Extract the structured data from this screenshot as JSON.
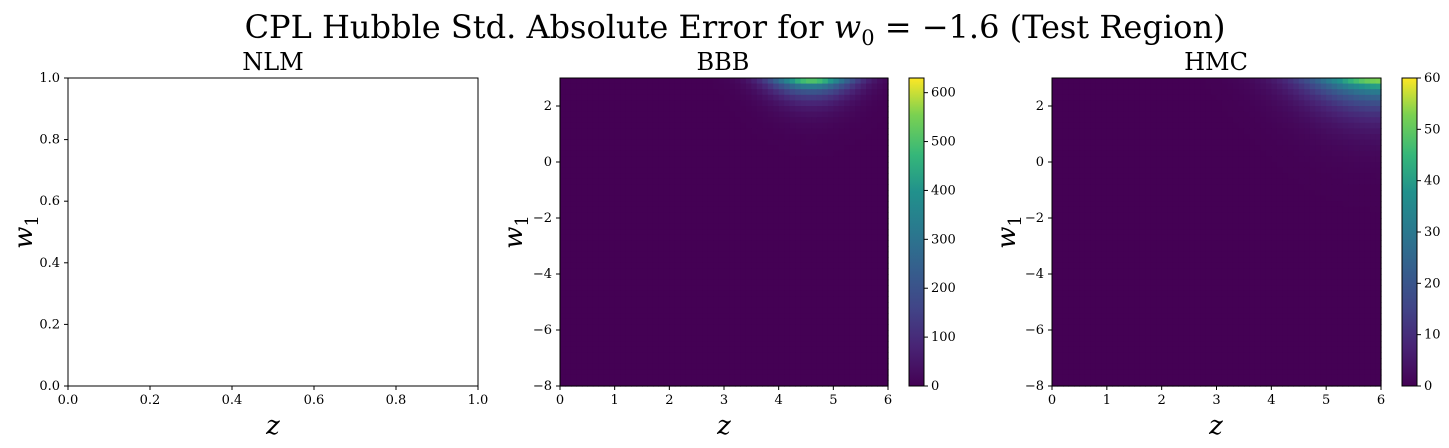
{
  "figure": {
    "title_prefix": "CPL Hubble Std. Absolute Error for ",
    "title_var": "w",
    "title_sub": "0",
    "title_suffix": " = −1.6 (Test Region)"
  },
  "chart_data": [
    {
      "type": "heatmap",
      "title": "NLM",
      "xlabel": "z",
      "ylabel_var": "w",
      "ylabel_sub": "1",
      "xlim": [
        0,
        1
      ],
      "ylim": [
        0,
        1
      ],
      "x_ticks": [
        "0.0",
        "0.2",
        "0.4",
        "0.6",
        "0.8",
        "1.0"
      ],
      "y_ticks": [
        "0.0",
        "0.2",
        "0.4",
        "0.6",
        "0.8",
        "1.0"
      ],
      "empty": true,
      "colorbar": null
    },
    {
      "type": "heatmap",
      "title": "BBB",
      "xlabel": "z",
      "ylabel_var": "w",
      "ylabel_sub": "1",
      "xlim": [
        0,
        6
      ],
      "ylim": [
        -8,
        3
      ],
      "x_ticks": [
        "0",
        "1",
        "2",
        "3",
        "4",
        "5",
        "6"
      ],
      "y_ticks": [
        "−8",
        "−6",
        "−4",
        "−2",
        "0",
        "2"
      ],
      "y_tick_values": [
        -8,
        -6,
        -4,
        -2,
        0,
        2
      ],
      "colormap": "viridis",
      "hotspot": {
        "z_center": 4.6,
        "z_spread": 0.75,
        "w1_top": 3,
        "w1_decay": 0.45,
        "max": 630
      },
      "colorbar": {
        "min": 0,
        "max": 630,
        "ticks": [
          "0",
          "100",
          "200",
          "300",
          "400",
          "500",
          "600"
        ],
        "tick_values": [
          0,
          100,
          200,
          300,
          400,
          500,
          600
        ]
      }
    },
    {
      "type": "heatmap",
      "title": "HMC",
      "xlabel": "z",
      "ylabel_var": "w",
      "ylabel_sub": "1",
      "xlim": [
        0,
        6
      ],
      "ylim": [
        -8,
        3
      ],
      "x_ticks": [
        "0",
        "1",
        "2",
        "3",
        "4",
        "5",
        "6"
      ],
      "y_ticks": [
        "−8",
        "−6",
        "−4",
        "−2",
        "0",
        "2"
      ],
      "y_tick_values": [
        -8,
        -6,
        -4,
        -2,
        0,
        2
      ],
      "colormap": "viridis",
      "hotspot": {
        "z_center": 6.0,
        "z_spread": 1.3,
        "w1_top": 3,
        "w1_decay": 0.75,
        "max": 60
      },
      "colorbar": {
        "min": 0,
        "max": 60,
        "ticks": [
          "0",
          "10",
          "20",
          "30",
          "40",
          "50",
          "60"
        ],
        "tick_values": [
          0,
          10,
          20,
          30,
          40,
          50,
          60
        ]
      }
    }
  ]
}
